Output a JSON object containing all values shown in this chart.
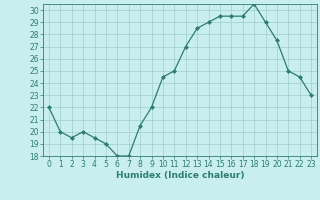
{
  "x": [
    0,
    1,
    2,
    3,
    4,
    5,
    6,
    7,
    8,
    9,
    10,
    11,
    12,
    13,
    14,
    15,
    16,
    17,
    18,
    19,
    20,
    21,
    22,
    23
  ],
  "y": [
    22,
    20,
    19.5,
    20,
    19.5,
    19,
    18,
    18,
    20.5,
    22,
    24.5,
    25,
    27,
    28.5,
    29,
    29.5,
    29.5,
    29.5,
    30.5,
    29,
    27.5,
    25,
    24.5,
    23
  ],
  "line_color": "#2e7d6e",
  "marker_color": "#2e7d6e",
  "bg_color": "#c8eef0",
  "grid_color": "#a0cece",
  "xlabel": "Humidex (Indice chaleur)",
  "xlim": [
    -0.5,
    23.5
  ],
  "ylim": [
    18,
    30.5
  ],
  "yticks": [
    18,
    19,
    20,
    21,
    22,
    23,
    24,
    25,
    26,
    27,
    28,
    29,
    30
  ],
  "xticks": [
    0,
    1,
    2,
    3,
    4,
    5,
    6,
    7,
    8,
    9,
    10,
    11,
    12,
    13,
    14,
    15,
    16,
    17,
    18,
    19,
    20,
    21,
    22,
    23
  ],
  "tick_color": "#2e7d6e",
  "label_fontsize": 5.5,
  "xlabel_fontsize": 6.5
}
